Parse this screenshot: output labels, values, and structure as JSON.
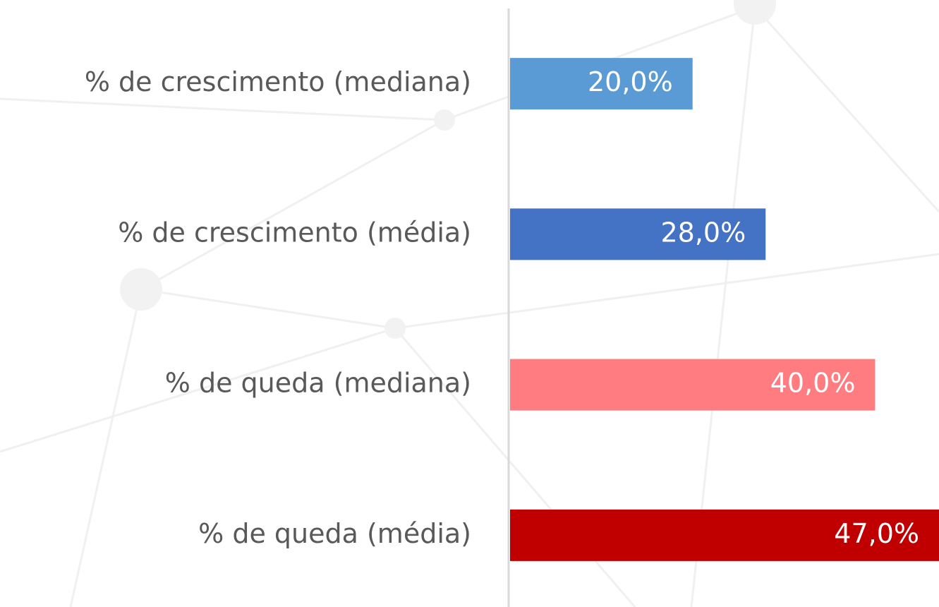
{
  "chart_data": {
    "type": "bar",
    "orientation": "horizontal",
    "categories": [
      "% de crescimento (mediana)",
      "% de crescimento (média)",
      "% de queda (mediana)",
      "% de queda (média)"
    ],
    "values": [
      20,
      28,
      40,
      47
    ],
    "value_labels": [
      "20,0%",
      "28,0%",
      "40,0%",
      "47,0%"
    ],
    "colors": [
      "#5b9bd5",
      "#4472c4",
      "#ff7c80",
      "#c00000"
    ]
  }
}
